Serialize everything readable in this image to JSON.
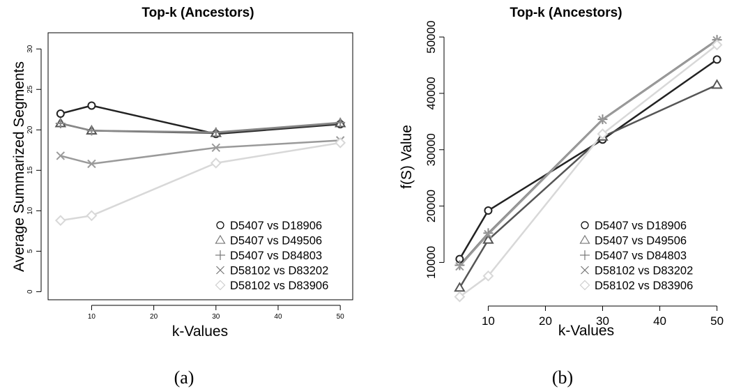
{
  "chart_data": [
    {
      "type": "line",
      "title": "Top-k (Ancestors)",
      "xlabel": "k-Values",
      "ylabel": "Average Summarized Segments",
      "caption": "(a)",
      "x": [
        5,
        10,
        30,
        50
      ],
      "xlim": [
        3,
        52
      ],
      "ylim": [
        -1,
        32
      ],
      "xticks": [
        10,
        20,
        30,
        40,
        50
      ],
      "yticks": [
        0,
        5,
        10,
        15,
        20,
        25,
        30
      ],
      "grid": false,
      "legend_position": "bottom-right",
      "series": [
        {
          "name": "D5407 vs D18906",
          "marker": "circle",
          "color": "#222222",
          "values": [
            22.0,
            23.0,
            19.5,
            20.7
          ]
        },
        {
          "name": "D5407 vs D49506",
          "marker": "triangle",
          "color": "#555555",
          "values": [
            20.8,
            19.9,
            19.6,
            20.8
          ]
        },
        {
          "name": "D5407 vs D84803",
          "marker": "plus",
          "color": "#888888",
          "values": [
            20.8,
            19.9,
            19.7,
            20.9
          ]
        },
        {
          "name": "D58102 vs D83202",
          "marker": "cross",
          "color": "#9a9a9a",
          "values": [
            16.8,
            15.8,
            17.8,
            18.7
          ]
        },
        {
          "name": "D58102 vs D83906",
          "marker": "diamond",
          "color": "#d8d8d8",
          "values": [
            8.8,
            9.4,
            15.9,
            18.4
          ]
        }
      ]
    },
    {
      "type": "line",
      "title": "Top-k (Ancestors)",
      "xlabel": "k-Values",
      "ylabel": "f(S) Value",
      "caption": "(b)",
      "x": [
        5,
        10,
        30,
        50
      ],
      "xlim": [
        3,
        52
      ],
      "ylim": [
        3000,
        51000
      ],
      "xticks": [
        10,
        20,
        30,
        40,
        50
      ],
      "yticks": [
        10000,
        20000,
        30000,
        40000,
        50000
      ],
      "grid": false,
      "legend_position": "bottom-right",
      "series": [
        {
          "name": "D5407 vs D18906",
          "marker": "circle",
          "color": "#222222",
          "values": [
            10600,
            19200,
            31800,
            46000
          ]
        },
        {
          "name": "D5407 vs D49506",
          "marker": "triangle",
          "color": "#555555",
          "values": [
            5500,
            14000,
            32300,
            41500
          ]
        },
        {
          "name": "D5407 vs D84803",
          "marker": "plus",
          "color": "#888888",
          "values": [
            9500,
            15200,
            35400,
            49500
          ]
        },
        {
          "name": "D58102 vs D83202",
          "marker": "cross",
          "color": "#9a9a9a",
          "values": [
            9300,
            15000,
            35300,
            49400
          ]
        },
        {
          "name": "D58102 vs D83906",
          "marker": "diamond",
          "color": "#d8d8d8",
          "values": [
            3900,
            7600,
            32800,
            48600
          ]
        }
      ]
    }
  ]
}
